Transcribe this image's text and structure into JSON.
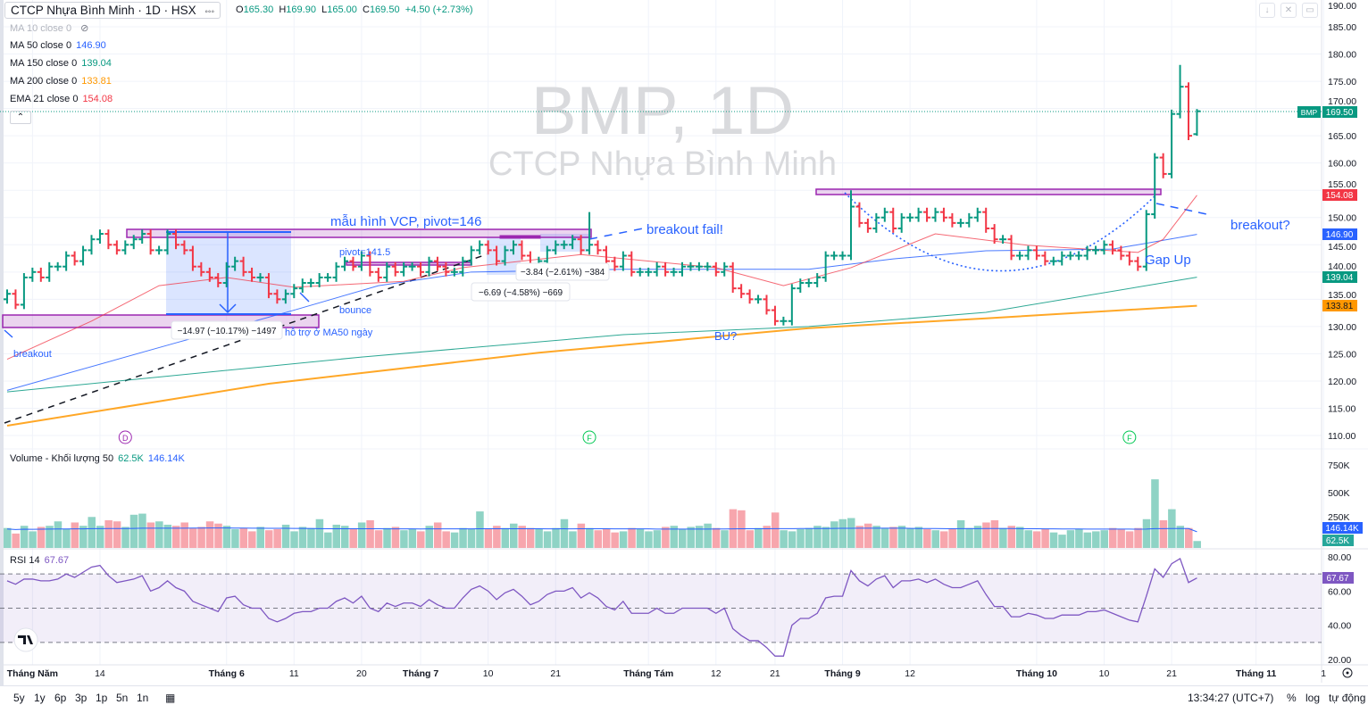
{
  "header": {
    "title": "CTCP Nhựa Bình Minh · 1D · HSX",
    "more_icon": "dots-icon",
    "ohlc": {
      "o_label": "O",
      "o": "165.30",
      "h_label": "H",
      "h": "169.90",
      "l_label": "L",
      "l": "165.00",
      "c_label": "C",
      "c": "169.50",
      "change": "+4.50 (+2.73%)"
    }
  },
  "indicators": [
    {
      "label": "MA 10 close 0",
      "value": "",
      "color": "#b2b5be",
      "hidden": true
    },
    {
      "label": "MA 50 close 0",
      "value": "146.90",
      "color": "#2962ff"
    },
    {
      "label": "MA 150 close 0",
      "value": "139.04",
      "color": "#089981"
    },
    {
      "label": "MA 200 close 0",
      "value": "133.81",
      "color": "#ff9800"
    },
    {
      "label": "EMA 21 close 0",
      "value": "154.08",
      "color": "#f23645"
    }
  ],
  "volume_legend": {
    "label": "Volume - Khối lượng 50",
    "value": "62.5K",
    "ma": "146.14K"
  },
  "rsi_legend": {
    "label": "RSI 14",
    "value": "67.67"
  },
  "watermark": {
    "line1": "BMP, 1D",
    "line2": "CTCP Nhựa Bình Minh"
  },
  "price_badges": {
    "symbol": "BMP",
    "last": "169.50",
    "ema21": "154.08",
    "ma50": "146.90",
    "ma150": "139.04",
    "ma200": "133.81",
    "vol_ma": "146.14K",
    "vol": "62.5K",
    "rsi": "67.67"
  },
  "annotations": {
    "vcp": "mẫu hình VCP, pivot=146",
    "breakout_fail": "breakout fail!",
    "pivot": "pivot=141.5",
    "bounce": "bounce",
    "support": "hỗ trợ ở MA50 ngày",
    "breakout": "breakout",
    "bu": "BU?",
    "breakout_q": "breakout?",
    "gap_up": "Gap Up",
    "measure1": "−14.97 (−10.17%) −1497",
    "measure2": "−6.69 (−4.58%) −669",
    "measure3": "−3.84 (−2.61%) −384"
  },
  "events": [
    {
      "letter": "D",
      "bar": 14,
      "color": "#9c27b0"
    },
    {
      "letter": "F",
      "bar": 69,
      "color": "#00c853"
    },
    {
      "letter": "F",
      "bar": 133,
      "color": "#00c853"
    }
  ],
  "colors": {
    "up": "#089981",
    "down": "#f23645",
    "vol_up": "#8fd3c5",
    "vol_down": "#f7a6ad",
    "rsi": "#7e57c2",
    "accent": "#2962ff",
    "zone": "#9c27b0"
  },
  "chart_data": {
    "type": "ohlc-bar",
    "symbol": "BMP",
    "interval": "1D",
    "closes": [
      136,
      134,
      139,
      140,
      139,
      141,
      141,
      143,
      142,
      144,
      146,
      147,
      145,
      144,
      145,
      146,
      147,
      144,
      144,
      147,
      145,
      144,
      141,
      140,
      139,
      138,
      141,
      142,
      140,
      139,
      139,
      136,
      135,
      136,
      137,
      138,
      138,
      139,
      139,
      141,
      142,
      141,
      143,
      140,
      139,
      141,
      140,
      141,
      141,
      140,
      142,
      141,
      140,
      140,
      142,
      144,
      145,
      144,
      142,
      144,
      145,
      143,
      141,
      142,
      144,
      145,
      145,
      146,
      144,
      145,
      144,
      142,
      141,
      143,
      140,
      140,
      140,
      141,
      140,
      140,
      141,
      141,
      141,
      141,
      140,
      141,
      137,
      136,
      135,
      135,
      133,
      131,
      131,
      137,
      138,
      138,
      139,
      143,
      143,
      143,
      152,
      149,
      148,
      150,
      151,
      148,
      150,
      150,
      151,
      150,
      151,
      150,
      149,
      149,
      150,
      151,
      148,
      146,
      146,
      143,
      143,
      144,
      143,
      142,
      142,
      143,
      143,
      143,
      144,
      144,
      145,
      144,
      143,
      142,
      141,
      150.6,
      161,
      158,
      169,
      174,
      165,
      169.5
    ],
    "last_bar": {
      "open": 165.3,
      "high": 169.9,
      "low": 165.0,
      "close": 169.5
    },
    "volume_k": [
      180,
      130,
      200,
      150,
      190,
      200,
      240,
      170,
      230,
      200,
      280,
      200,
      250,
      240,
      190,
      300,
      310,
      230,
      240,
      210,
      200,
      230,
      180,
      190,
      240,
      220,
      200,
      170,
      180,
      150,
      190,
      160,
      170,
      210,
      150,
      190,
      180,
      260,
      140,
      210,
      200,
      170,
      230,
      250,
      160,
      180,
      190,
      160,
      170,
      150,
      200,
      230,
      150,
      140,
      180,
      170,
      330,
      170,
      200,
      180,
      220,
      200,
      180,
      170,
      150,
      180,
      260,
      150,
      220,
      180,
      160,
      170,
      140,
      150,
      180,
      170,
      150,
      160,
      190,
      200,
      170,
      190,
      200,
      220,
      180,
      160,
      350,
      340,
      160,
      180,
      200,
      320,
      160,
      150,
      170,
      180,
      200,
      190,
      240,
      260,
      270,
      200,
      220,
      200,
      180,
      190,
      200,
      180,
      190,
      170,
      160,
      150,
      170,
      250,
      180,
      200,
      230,
      250,
      180,
      200,
      190,
      160,
      150,
      170,
      140,
      120,
      160,
      170,
      140,
      150,
      160,
      180,
      170,
      150,
      180,
      260,
      620,
      250,
      350,
      200,
      180,
      62.5
    ],
    "rsi": [
      66,
      64,
      67,
      67,
      66,
      66,
      67,
      70,
      68,
      71,
      74,
      75,
      69,
      65,
      66,
      67,
      69,
      60,
      62,
      66,
      62,
      60,
      54,
      52,
      50,
      48,
      56,
      57,
      52,
      50,
      50,
      44,
      42,
      44,
      47,
      48,
      48,
      50,
      50,
      54,
      56,
      53,
      57,
      50,
      48,
      53,
      51,
      53,
      53,
      51,
      55,
      52,
      50,
      50,
      56,
      61,
      63,
      60,
      55,
      59,
      61,
      57,
      52,
      54,
      58,
      60,
      60,
      62,
      56,
      59,
      56,
      51,
      49,
      54,
      47,
      47,
      47,
      50,
      47,
      47,
      50,
      50,
      50,
      50,
      47,
      50,
      38,
      34,
      31,
      31,
      27,
      22,
      22,
      40,
      44,
      44,
      47,
      56,
      57,
      57,
      72,
      66,
      63,
      67,
      69,
      62,
      66,
      66,
      67,
      65,
      67,
      64,
      62,
      62,
      64,
      66,
      58,
      51,
      51,
      45,
      45,
      47,
      46,
      44,
      44,
      46,
      46,
      46,
      48,
      48,
      49,
      47,
      45,
      43,
      42,
      57,
      73,
      68,
      76,
      79,
      65,
      67.67
    ],
    "ma_lines": {
      "MA 50": [
        [
          0,
          118.3
        ],
        [
          20,
          127
        ],
        [
          34,
          133
        ],
        [
          44,
          137.5
        ],
        [
          55,
          140
        ],
        [
          73,
          140.5
        ],
        [
          84,
          140.5
        ],
        [
          95,
          140.5
        ],
        [
          105,
          142.4
        ],
        [
          116,
          143.9
        ],
        [
          131,
          144.2
        ],
        [
          141,
          146.9
        ]
      ],
      "MA 150": [
        [
          0,
          118
        ],
        [
          42,
          124.4
        ],
        [
          73,
          128.5
        ],
        [
          95,
          130
        ],
        [
          116,
          132.6
        ],
        [
          141,
          139.04
        ]
      ],
      "MA 200": [
        [
          0,
          111.8
        ],
        [
          31,
          119.5
        ],
        [
          63,
          125.2
        ],
        [
          95,
          129.7
        ],
        [
          116,
          131.5
        ],
        [
          141,
          133.81
        ]
      ],
      "EMA 21": [
        [
          0,
          124
        ],
        [
          10,
          131
        ],
        [
          18,
          137.5
        ],
        [
          26,
          139
        ],
        [
          34,
          137.2
        ],
        [
          47,
          138.3
        ],
        [
          54,
          140.8
        ],
        [
          68,
          143.2
        ],
        [
          84,
          140.8
        ],
        [
          92,
          137.5
        ],
        [
          100,
          140.8
        ],
        [
          110,
          147
        ],
        [
          121,
          144.9
        ],
        [
          134,
          143.6
        ],
        [
          137,
          146
        ],
        [
          141,
          154.08
        ]
      ]
    },
    "price_axis": {
      "ticks": [
        110,
        115,
        120,
        125,
        130,
        135,
        140,
        145,
        150,
        155,
        160,
        165,
        170,
        175,
        180,
        185,
        190
      ]
    },
    "volume_axis": {
      "ticks": [
        "250K",
        "500K",
        "750K"
      ]
    },
    "rsi_axis": {
      "ticks": [
        "20.00",
        "40.00",
        "60.00",
        "80.00"
      ],
      "bands": [
        70,
        50,
        30
      ]
    },
    "x_ticks": [
      {
        "label": "Tháng Năm",
        "bar": 3,
        "bold": true
      },
      {
        "label": "14",
        "bar": 11
      },
      {
        "label": "Tháng 6",
        "bar": 26,
        "bold": true
      },
      {
        "label": "11",
        "bar": 34
      },
      {
        "label": "20",
        "bar": 42
      },
      {
        "label": "Tháng 7",
        "bar": 49,
        "bold": true
      },
      {
        "label": "10",
        "bar": 57
      },
      {
        "label": "21",
        "bar": 65
      },
      {
        "label": "Tháng Tám",
        "bar": 76,
        "bold": true
      },
      {
        "label": "12",
        "bar": 84
      },
      {
        "label": "21",
        "bar": 91
      },
      {
        "label": "Tháng 9",
        "bar": 99,
        "bold": true
      },
      {
        "label": "12",
        "bar": 107
      },
      {
        "label": "Tháng 10",
        "bar": 122,
        "bold": true
      },
      {
        "label": "10",
        "bar": 130
      },
      {
        "label": "21",
        "bar": 138
      },
      {
        "label": "Tháng 11",
        "bar": 148,
        "bold": true
      },
      {
        "label": "1",
        "bar": 156
      }
    ]
  },
  "bottom_bar": {
    "ranges": [
      "5y",
      "1y",
      "6p",
      "3p",
      "1p",
      "5n",
      "1n"
    ],
    "time": "13:34:27 (UTC+7)",
    "percent": "%",
    "log": "log",
    "auto": "tự động"
  }
}
